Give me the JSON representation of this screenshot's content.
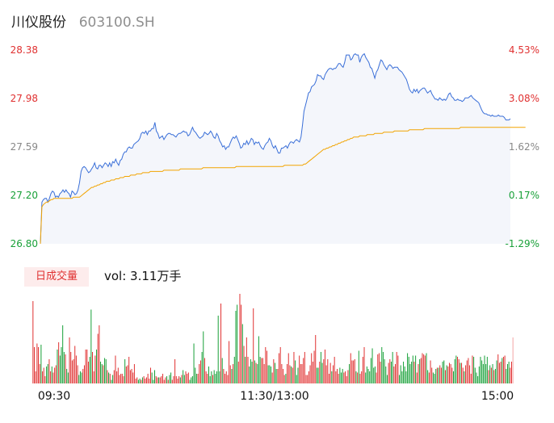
{
  "header": {
    "name": "川仪股份",
    "code": "603100.SH"
  },
  "colors": {
    "price_line": "#3a6fd8",
    "avg_line": "#f2a400",
    "up": "#e03131",
    "down": "#18a038",
    "area_fill": "#f4f6fb"
  },
  "chart_data": [
    {
      "type": "line",
      "title": "",
      "x_ticks": [
        "09:30",
        "11:30/13:00",
        "15:00"
      ],
      "y_axis_left": [
        "28.38",
        "27.98",
        "27.59",
        "27.20",
        "26.80"
      ],
      "y_axis_right": [
        "4.53%",
        "3.08%",
        "1.62%",
        "0.17%",
        "-1.29%"
      ],
      "ylim": [
        26.8,
        28.38
      ],
      "series": [
        {
          "values": [
            26.8,
            27.14,
            27.16,
            27.17,
            27.17,
            27.14,
            27.17,
            27.21,
            27.23,
            27.22,
            27.18,
            27.19,
            27.18,
            27.21,
            27.22,
            27.24,
            27.22,
            27.24,
            27.22,
            27.21,
            27.18,
            27.23,
            27.22,
            27.2,
            27.21,
            27.24,
            27.3,
            27.39,
            27.42,
            27.43,
            27.42,
            27.4,
            27.38,
            27.39,
            27.41,
            27.43,
            27.46,
            27.42,
            27.41,
            27.44,
            27.44,
            27.42,
            27.44,
            27.46,
            27.45,
            27.43,
            27.46,
            27.43,
            27.47,
            27.46,
            27.49,
            27.46,
            27.44,
            27.48,
            27.49,
            27.53,
            27.55,
            27.55,
            27.58,
            27.59,
            27.58,
            27.58,
            27.61,
            27.62,
            27.63,
            27.64,
            27.66,
            27.7,
            27.71,
            27.7,
            27.72,
            27.69,
            27.72,
            27.72,
            27.74,
            27.74,
            27.79,
            27.72,
            27.7,
            27.66,
            27.67,
            27.68,
            27.65,
            27.67,
            27.69,
            27.7,
            27.7,
            27.69,
            27.69,
            27.68,
            27.67,
            27.69,
            27.7,
            27.7,
            27.71,
            27.72,
            27.71,
            27.71,
            27.68,
            27.69,
            27.72,
            27.75,
            27.72,
            27.71,
            27.69,
            27.67,
            27.66,
            27.67,
            27.68,
            27.71,
            27.7,
            27.69,
            27.7,
            27.72,
            27.7,
            27.67,
            27.66,
            27.7,
            27.68,
            27.64,
            27.62,
            27.59,
            27.6,
            27.57,
            27.59,
            27.59,
            27.62,
            27.65,
            27.67,
            27.66,
            27.68,
            27.65,
            27.62,
            27.58,
            27.59,
            27.62,
            27.61,
            27.64,
            27.61,
            27.63,
            27.66,
            27.65,
            27.61,
            27.63,
            27.62,
            27.63,
            27.6,
            27.58,
            27.57,
            27.6,
            27.62,
            27.63,
            27.66,
            27.64,
            27.6,
            27.58,
            27.6,
            27.57,
            27.54,
            27.54,
            27.58,
            27.58,
            27.59,
            27.6,
            27.58,
            27.61,
            27.63,
            27.63,
            27.62,
            27.64,
            27.65,
            27.64,
            27.63,
            27.67,
            27.77,
            27.88,
            27.93,
            27.98,
            28.03,
            28.04,
            28.08,
            28.09,
            28.1,
            28.13,
            28.18,
            28.17,
            28.17,
            28.15,
            28.14,
            28.18,
            28.2,
            28.22,
            28.23,
            28.23,
            28.22,
            28.23,
            28.23,
            28.25,
            28.27,
            28.27,
            28.25,
            28.24,
            28.28,
            28.34,
            28.34,
            28.34,
            28.3,
            28.31,
            28.34,
            28.35,
            28.34,
            28.34,
            28.28,
            28.32,
            28.34,
            28.35,
            28.32,
            28.3,
            28.28,
            28.24,
            28.23,
            28.19,
            28.15,
            28.2,
            28.22,
            28.26,
            28.3,
            28.29,
            28.26,
            28.24,
            28.22,
            28.25,
            28.26,
            28.25,
            28.23,
            28.24,
            28.24,
            28.24,
            28.22,
            28.21,
            28.2,
            28.18,
            28.16,
            28.14,
            28.1,
            28.06,
            28.04,
            28.03,
            28.06,
            28.04,
            28.06,
            28.03,
            28.05,
            28.06,
            28.07,
            28.07,
            28.05,
            28.03,
            28.04,
            28.05,
            28.02,
            28.0,
            27.98,
            27.98,
            27.97,
            27.99,
            27.98,
            27.97,
            27.98,
            27.97,
            27.99,
            28.02,
            28.03,
            28.0,
            27.99,
            27.97,
            27.97,
            27.98,
            27.97,
            27.97,
            27.96,
            27.97,
            27.99,
            27.99,
            27.99,
            28.0,
            28.01,
            27.99,
            27.98,
            27.97,
            27.96,
            27.95,
            27.92,
            27.89,
            27.87,
            27.86,
            27.86,
            27.85,
            27.85,
            27.84,
            27.85,
            27.84,
            27.84,
            27.84,
            27.85,
            27.84,
            27.84,
            27.84,
            27.83,
            27.81,
            27.81,
            27.81,
            27.82
          ]
        },
        {
          "values": [
            26.8,
            27.1,
            27.12,
            27.13,
            27.14,
            27.14,
            27.15,
            27.16,
            27.16,
            27.17,
            27.17,
            27.17,
            27.17,
            27.17,
            27.17,
            27.17,
            27.17,
            27.17,
            27.17,
            27.17,
            27.17,
            27.17,
            27.18,
            27.18,
            27.18,
            27.18,
            27.18,
            27.19,
            27.2,
            27.21,
            27.22,
            27.23,
            27.24,
            27.25,
            27.26,
            27.26,
            27.27,
            27.27,
            27.28,
            27.28,
            27.29,
            27.29,
            27.3,
            27.3,
            27.31,
            27.31,
            27.31,
            27.32,
            27.32,
            27.32,
            27.33,
            27.33,
            27.33,
            27.34,
            27.34,
            27.34,
            27.35,
            27.35,
            27.35,
            27.35,
            27.36,
            27.36,
            27.36,
            27.36,
            27.37,
            27.37,
            27.37,
            27.37,
            27.38,
            27.38,
            27.38,
            27.38,
            27.38,
            27.39,
            27.39,
            27.39,
            27.39,
            27.39,
            27.39,
            27.39,
            27.39,
            27.39,
            27.4,
            27.4,
            27.4,
            27.4,
            27.4,
            27.4,
            27.4,
            27.4,
            27.4,
            27.4,
            27.4,
            27.41,
            27.41,
            27.41,
            27.41,
            27.41,
            27.41,
            27.41,
            27.41,
            27.41,
            27.41,
            27.41,
            27.41,
            27.41,
            27.41,
            27.41,
            27.42,
            27.42,
            27.42,
            27.42,
            27.42,
            27.42,
            27.42,
            27.42,
            27.42,
            27.42,
            27.42,
            27.42,
            27.42,
            27.42,
            27.42,
            27.42,
            27.42,
            27.42,
            27.42,
            27.42,
            27.42,
            27.42,
            27.43,
            27.43,
            27.43,
            27.43,
            27.43,
            27.43,
            27.43,
            27.43,
            27.43,
            27.43,
            27.43,
            27.43,
            27.43,
            27.43,
            27.43,
            27.43,
            27.43,
            27.43,
            27.43,
            27.43,
            27.43,
            27.43,
            27.43,
            27.43,
            27.43,
            27.43,
            27.43,
            27.43,
            27.43,
            27.43,
            27.43,
            27.43,
            27.44,
            27.44,
            27.44,
            27.44,
            27.44,
            27.44,
            27.44,
            27.44,
            27.44,
            27.44,
            27.44,
            27.44,
            27.44,
            27.45,
            27.45,
            27.46,
            27.47,
            27.48,
            27.49,
            27.5,
            27.51,
            27.52,
            27.53,
            27.54,
            27.55,
            27.56,
            27.57,
            27.57,
            27.58,
            27.58,
            27.59,
            27.59,
            27.6,
            27.6,
            27.61,
            27.61,
            27.62,
            27.62,
            27.63,
            27.63,
            27.64,
            27.64,
            27.65,
            27.65,
            27.66,
            27.66,
            27.67,
            27.67,
            27.67,
            27.67,
            27.68,
            27.68,
            27.68,
            27.68,
            27.68,
            27.69,
            27.69,
            27.69,
            27.69,
            27.69,
            27.7,
            27.7,
            27.7,
            27.7,
            27.7,
            27.7,
            27.71,
            27.71,
            27.71,
            27.71,
            27.71,
            27.71,
            27.71,
            27.72,
            27.72,
            27.72,
            27.72,
            27.72,
            27.72,
            27.72,
            27.72,
            27.72,
            27.72,
            27.73,
            27.73,
            27.73,
            27.73,
            27.73,
            27.73,
            27.73,
            27.73,
            27.73,
            27.73,
            27.74,
            27.74,
            27.74,
            27.74,
            27.74,
            27.74,
            27.74,
            27.74,
            27.74,
            27.74,
            27.74,
            27.74,
            27.74,
            27.74,
            27.74,
            27.74,
            27.74,
            27.74,
            27.74,
            27.74,
            27.74,
            27.74,
            27.74,
            27.74,
            27.75,
            27.75,
            27.75,
            27.75,
            27.75,
            27.75,
            27.75,
            27.75,
            27.75,
            27.75,
            27.75,
            27.75,
            27.75,
            27.75,
            27.75,
            27.75,
            27.75,
            27.75,
            27.75,
            27.75,
            27.75,
            27.75,
            27.75,
            27.75,
            27.75,
            27.75,
            27.75,
            27.75,
            27.75,
            27.75,
            27.75,
            27.75,
            27.75,
            27.75,
            27.75,
            27.75,
            27.75,
            27.75,
            27.75,
            27.75,
            27.75,
            27.75,
            27.75,
            27.75
          ]
        }
      ]
    },
    {
      "type": "bar",
      "title": "日成交量",
      "vol_label": "vol: 3.11万手",
      "x_ticks": [
        "09:30",
        "11:30/13:00",
        "15:00"
      ],
      "series": [
        {
          "values": [
            0.68,
            0.3,
            0.1,
            0.33,
            0.3,
            0.16,
            0.32,
            0.1,
            0.13,
            0.06,
            0.14,
            0.16,
            0.2,
            0.1,
            0.14,
            0.09,
            0.13,
            0.15,
            0.28,
            0.34,
            0.23,
            0.3,
            0.48,
            0.26,
            0.24,
            0.12,
            0.09,
            0.38,
            0.26,
            0.19,
            0.2,
            0.31,
            0.23,
            0.15,
            0.07,
            0.1,
            0.09,
            0.12,
            0.15,
            0.28,
            0.28,
            0.18,
            0.22,
            0.61,
            0.26,
            0.1,
            0.23,
            0.28,
            0.41,
            0.48,
            0.18,
            0.16,
            0.15,
            0.21,
            0.2,
            0.11,
            0.09,
            0.08,
            0.03,
            0.07,
            0.11,
            0.23,
            0.1,
            0.13,
            0.07,
            0.08,
            0.08,
            0.06,
            0.2,
            0.14,
            0.15,
            0.22,
            0.11,
            0.12,
            0.09,
            0.16,
            0.04,
            0.05,
            0.03,
            0.04,
            0.03,
            0.05,
            0.06,
            0.04,
            0.05,
            0.08,
            0.04,
            0.13,
            0.09,
            0.03,
            0.11,
            0.06,
            0.05,
            0.05,
            0.05,
            0.06,
            0.08,
            0.03,
            0.05,
            0.06,
            0.03,
            0.07,
            0.09,
            0.03,
            0.06,
            0.2,
            0.06,
            0.04,
            0.06,
            0.05,
            0.07,
            0.11,
            0.07,
            0.1,
            0.08,
            0.09,
            0.03,
            0.05,
            0.06,
            0.33,
            0.13,
            0.08,
            0.08,
            0.16,
            0.19,
            0.26,
            0.43,
            0.21,
            0.1,
            0.08,
            0.14,
            0.06,
            0.1,
            0.07,
            0.11,
            0.08,
            0.1,
            0.56,
            0.1,
            0.66,
            0.21,
            0.12,
            0.08,
            0.1,
            0.07,
            0.35,
            0.15,
            0.12,
            0.16,
            0.22,
            0.6,
            0.65,
            0.18,
            0.74,
            0.65,
            0.49,
            0.31,
            0.22,
            0.38,
            0.22,
            0.14,
            0.2,
            0.18,
            0.62,
            0.19,
            0.17,
            0.16,
            0.39,
            0.22,
            0.21,
            0.21,
            0.16,
            0.3,
            0.27,
            0.15,
            0.15,
            0.14,
            0.09,
            0.2,
            0.17,
            0.12,
            0.12,
            0.25,
            0.3,
            0.16,
            0.12,
            0.07,
            0.08,
            0.16,
            0.25,
            0.15,
            0.14,
            0.13,
            0.26,
            0.19,
            0.07,
            0.13,
            0.23,
            0.16,
            0.16,
            0.21,
            0.26,
            0.07,
            0.07,
            0.1,
            0.15,
            0.25,
            0.18,
            0.27,
            0.4,
            0.13,
            0.13,
            0.18,
            0.26,
            0.17,
            0.2,
            0.28,
            0.15,
            0.2,
            0.08,
            0.17,
            0.1,
            0.15,
            0.22,
            0.1,
            0.12,
            0.08,
            0.13,
            0.09,
            0.12,
            0.09,
            0.1,
            0.06,
            0.11,
            0.16,
            0.25,
            0.19,
            0.19,
            0.2,
            0.1,
            0.09,
            0.27,
            0.08,
            0.1,
            0.22,
            0.3,
            0.09,
            0.14,
            0.12,
            0.1,
            0.21,
            0.29,
            0.13,
            0.14,
            0.09,
            0.24,
            0.25,
            0.18,
            0.3,
            0.26,
            0.2,
            0.14,
            0.07,
            0.17,
            0.2,
            0.18,
            0.26,
            0.14,
            0.16,
            0.26,
            0.23,
            0.07,
            0.15,
            0.1,
            0.18,
            0.14,
            0.1,
            0.25,
            0.22,
            0.16,
            0.18,
            0.23,
            0.18,
            0.23,
            0.09,
            0.16,
            0.2,
            0.21,
            0.25,
            0.24,
            0.23,
            0.25,
            0.11,
            0.09,
            0.19,
            0.13,
            0.09,
            0.08,
            0.12,
            0.13,
            0.13,
            0.15,
            0.13,
            0.18,
            0.19,
            0.11,
            0.15,
            0.14,
            0.17,
            0.16,
            0.13,
            0.1,
            0.2,
            0.23,
            0.22,
            0.2,
            0.17,
            0.17,
            0.13,
            0.1,
            0.15,
            0.19,
            0.21,
            0.15,
            0.08,
            0.23,
            0.22,
            0.13,
            0.09,
            0.06,
            0.14,
            0.22,
            0.19,
            0.16,
            0.23,
            0.16,
            0.22,
            0.11,
            0.15,
            0.13,
            0.16,
            0.11,
            0.12,
            0.19,
            0.24,
            0.17,
            0.18,
            0.21,
            0.22,
            0.23,
            0.12,
            0.16,
            0.18,
            0.13,
            0.18,
            0.38
          ]
        }
      ]
    }
  ]
}
